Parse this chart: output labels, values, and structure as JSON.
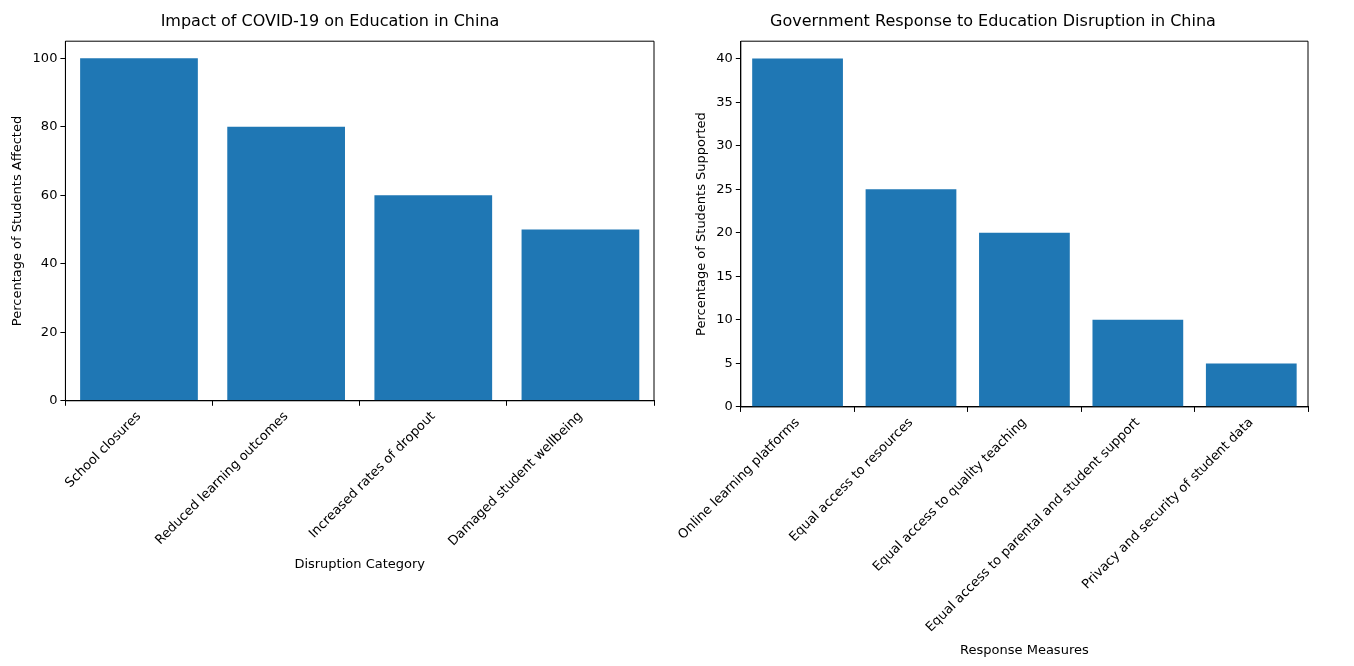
{
  "chart_data": [
    {
      "type": "bar",
      "title": "Impact of COVID-19 on Education in China",
      "xlabel": "Disruption Category",
      "ylabel": "Percentage of Students Affected",
      "categories": [
        "School closures",
        "Reduced learning outcomes",
        "Increased rates of dropout",
        "Damaged student wellbeing"
      ],
      "values": [
        100,
        80,
        60,
        50
      ],
      "color": "#1f77b4",
      "ylim": [
        0,
        105
      ],
      "yticks": [
        0,
        20,
        40,
        60,
        80,
        100
      ],
      "grid": false,
      "legend": false
    },
    {
      "type": "bar",
      "title": "Government Response to Education Disruption in China",
      "xlabel": "Response Measures",
      "ylabel": "Percentage of Students Supported",
      "categories": [
        "Online learning platforms",
        "Equal access to resources",
        "Equal access to quality teaching",
        "Equal access to parental and student support",
        "Privacy and security of student data"
      ],
      "values": [
        40,
        25,
        20,
        10,
        5
      ],
      "color": "#1f77b4",
      "ylim": [
        0,
        42
      ],
      "yticks": [
        0,
        5,
        10,
        15,
        20,
        25,
        30,
        35,
        40
      ],
      "grid": false,
      "legend": false
    }
  ]
}
